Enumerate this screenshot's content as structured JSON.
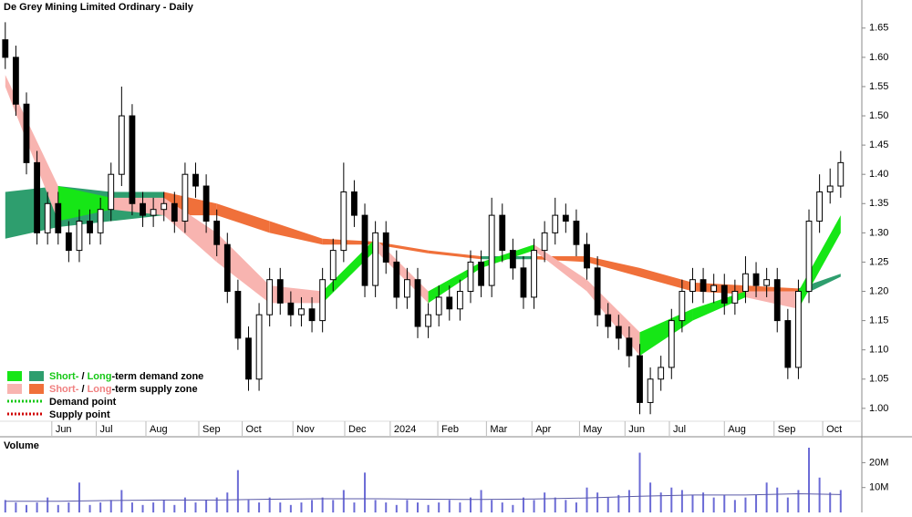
{
  "chart_data": {
    "type": "candlestick",
    "title": "De Grey Mining Limited Ordinary - Daily",
    "volume_title": "Volume",
    "xlim": [
      -0.5,
      81
    ],
    "xticks": [
      {
        "value": 4.4,
        "label": "Jun"
      },
      {
        "value": 8.6,
        "label": "Jul"
      },
      {
        "value": 13.3,
        "label": "Aug"
      },
      {
        "value": 18.3,
        "label": "Sep"
      },
      {
        "value": 22.4,
        "label": "Oct"
      },
      {
        "value": 27.2,
        "label": "Nov"
      },
      {
        "value": 32.1,
        "label": "Dec"
      },
      {
        "value": 36.4,
        "label": "2024"
      },
      {
        "value": 40.9,
        "label": "Feb"
      },
      {
        "value": 45.5,
        "label": "Mar"
      },
      {
        "value": 49.8,
        "label": "Apr"
      },
      {
        "value": 54.3,
        "label": "May"
      },
      {
        "value": 58.6,
        "label": "Jun"
      },
      {
        "value": 62.8,
        "label": "Jul"
      },
      {
        "value": 68.0,
        "label": "Aug"
      },
      {
        "value": 72.7,
        "label": "Sep"
      },
      {
        "value": 77.3,
        "label": "Oct"
      }
    ],
    "ylim": [
      0.953,
      1.698
    ],
    "yticks": [
      {
        "value": 1.0,
        "label": "1.00"
      },
      {
        "value": 1.05,
        "label": "1.05"
      },
      {
        "value": 1.1,
        "label": "1.10"
      },
      {
        "value": 1.15,
        "label": "1.15"
      },
      {
        "value": 1.2,
        "label": "1.20"
      },
      {
        "value": 1.25,
        "label": "1.25"
      },
      {
        "value": 1.3,
        "label": "1.30"
      },
      {
        "value": 1.35,
        "label": "1.35"
      },
      {
        "value": 1.4,
        "label": "1.40"
      },
      {
        "value": 1.45,
        "label": "1.45"
      },
      {
        "value": 1.5,
        "label": "1.50"
      },
      {
        "value": 1.55,
        "label": "1.55"
      },
      {
        "value": 1.6,
        "label": "1.60"
      },
      {
        "value": 1.65,
        "label": "1.65"
      }
    ],
    "close": [
      1.6,
      1.52,
      1.42,
      1.3,
      1.35,
      1.3,
      1.27,
      1.32,
      1.3,
      1.34,
      1.4,
      1.5,
      1.35,
      1.33,
      1.34,
      1.35,
      1.32,
      1.4,
      1.38,
      1.32,
      1.28,
      1.2,
      1.12,
      1.05,
      1.16,
      1.22,
      1.18,
      1.16,
      1.17,
      1.15,
      1.22,
      1.27,
      1.37,
      1.33,
      1.21,
      1.3,
      1.25,
      1.19,
      1.22,
      1.14,
      1.16,
      1.19,
      1.17,
      1.2,
      1.25,
      1.21,
      1.33,
      1.27,
      1.24,
      1.19,
      1.27,
      1.3,
      1.33,
      1.32,
      1.28,
      1.24,
      1.16,
      1.14,
      1.12,
      1.09,
      1.01,
      1.05,
      1.07,
      1.15,
      1.2,
      1.22,
      1.2,
      1.21,
      1.18,
      1.2,
      1.23,
      1.21,
      1.22,
      1.15,
      1.07,
      1.2,
      1.32,
      1.37,
      1.38,
      1.42
    ],
    "open": [
      1.63,
      1.6,
      1.52,
      1.42,
      1.3,
      1.35,
      1.3,
      1.27,
      1.32,
      1.3,
      1.34,
      1.4,
      1.5,
      1.35,
      1.33,
      1.34,
      1.35,
      1.32,
      1.4,
      1.38,
      1.32,
      1.28,
      1.2,
      1.12,
      1.05,
      1.16,
      1.22,
      1.18,
      1.16,
      1.17,
      1.15,
      1.22,
      1.27,
      1.37,
      1.33,
      1.21,
      1.3,
      1.25,
      1.19,
      1.22,
      1.14,
      1.16,
      1.19,
      1.17,
      1.2,
      1.25,
      1.21,
      1.33,
      1.27,
      1.24,
      1.19,
      1.27,
      1.3,
      1.33,
      1.32,
      1.28,
      1.24,
      1.16,
      1.14,
      1.12,
      1.09,
      1.01,
      1.05,
      1.07,
      1.15,
      1.2,
      1.22,
      1.2,
      1.21,
      1.18,
      1.2,
      1.23,
      1.21,
      1.22,
      1.15,
      1.07,
      1.2,
      1.32,
      1.37,
      1.38
    ],
    "high": [
      1.66,
      1.62,
      1.54,
      1.44,
      1.37,
      1.37,
      1.32,
      1.34,
      1.34,
      1.36,
      1.42,
      1.55,
      1.52,
      1.37,
      1.36,
      1.37,
      1.37,
      1.42,
      1.42,
      1.4,
      1.34,
      1.3,
      1.22,
      1.14,
      1.18,
      1.24,
      1.24,
      1.2,
      1.19,
      1.19,
      1.24,
      1.29,
      1.42,
      1.39,
      1.35,
      1.32,
      1.32,
      1.27,
      1.24,
      1.24,
      1.18,
      1.21,
      1.21,
      1.22,
      1.27,
      1.27,
      1.36,
      1.35,
      1.29,
      1.26,
      1.29,
      1.32,
      1.36,
      1.35,
      1.34,
      1.3,
      1.26,
      1.18,
      1.16,
      1.14,
      1.11,
      1.07,
      1.09,
      1.17,
      1.22,
      1.24,
      1.24,
      1.23,
      1.23,
      1.22,
      1.26,
      1.25,
      1.24,
      1.24,
      1.17,
      1.22,
      1.34,
      1.4,
      1.41,
      1.44
    ],
    "low": [
      1.58,
      1.5,
      1.4,
      1.28,
      1.28,
      1.28,
      1.25,
      1.25,
      1.28,
      1.28,
      1.32,
      1.38,
      1.33,
      1.31,
      1.31,
      1.32,
      1.3,
      1.3,
      1.36,
      1.3,
      1.26,
      1.18,
      1.1,
      1.03,
      1.03,
      1.14,
      1.16,
      1.14,
      1.14,
      1.13,
      1.13,
      1.2,
      1.25,
      1.31,
      1.19,
      1.19,
      1.23,
      1.17,
      1.17,
      1.12,
      1.12,
      1.14,
      1.15,
      1.15,
      1.18,
      1.19,
      1.19,
      1.25,
      1.22,
      1.17,
      1.17,
      1.25,
      1.28,
      1.3,
      1.26,
      1.22,
      1.14,
      1.12,
      1.1,
      1.07,
      0.99,
      0.99,
      1.03,
      1.05,
      1.13,
      1.18,
      1.18,
      1.18,
      1.16,
      1.16,
      1.18,
      1.19,
      1.19,
      1.13,
      1.05,
      1.05,
      1.18,
      1.3,
      1.35,
      1.36
    ],
    "band_x": [
      0,
      5,
      10,
      15,
      20,
      25,
      30,
      35,
      40,
      45,
      50,
      55,
      60,
      65,
      70,
      75,
      79
    ],
    "long_upper": [
      1.37,
      1.38,
      1.37,
      1.37,
      1.35,
      1.32,
      1.29,
      1.285,
      1.27,
      1.26,
      1.26,
      1.26,
      1.24,
      1.215,
      1.21,
      1.205,
      1.23
    ],
    "long_lower": [
      1.29,
      1.31,
      1.32,
      1.33,
      1.33,
      1.3,
      1.28,
      1.28,
      1.265,
      1.255,
      1.255,
      1.25,
      1.225,
      1.2,
      1.195,
      1.19,
      1.225
    ],
    "short_upper": [
      1.57,
      1.38,
      1.36,
      1.36,
      1.3,
      1.21,
      1.2,
      1.29,
      1.2,
      1.25,
      1.28,
      1.22,
      1.13,
      1.17,
      1.2,
      1.2,
      1.33
    ],
    "short_lower": [
      1.55,
      1.32,
      1.34,
      1.33,
      1.25,
      1.18,
      1.18,
      1.27,
      1.18,
      1.24,
      1.27,
      1.2,
      1.09,
      1.15,
      1.19,
      1.17,
      1.3
    ],
    "colors": {
      "demand_short": "#16e616",
      "demand_long": "#2e9e6e",
      "supply_short": "#f8b4b0",
      "supply_long": "#f0703a",
      "demand_point": "#16c816",
      "supply_point": "#d00000",
      "volume": "#6b6bd6"
    },
    "legend": [
      {
        "short": "Short-",
        "sep": " / ",
        "long": "Long",
        "rest": "-term demand zone"
      },
      {
        "short": "Short-",
        "sep": " / ",
        "long": "Long",
        "rest": "-term supply zone"
      },
      {
        "rest": "Demand point"
      },
      {
        "rest": "Supply point"
      }
    ],
    "volume": [
      5000000,
      4000000,
      3000000,
      4000000,
      6000000,
      3000000,
      4000000,
      12000000,
      3000000,
      4000000,
      5000000,
      9000000,
      4000000,
      3000000,
      4000000,
      5000000,
      3000000,
      6000000,
      4000000,
      5000000,
      6000000,
      8000000,
      17000000,
      5000000,
      4000000,
      6000000,
      4000000,
      3000000,
      4000000,
      5000000,
      6000000,
      5000000,
      9000000,
      4000000,
      16000000,
      5000000,
      4000000,
      3000000,
      5000000,
      4000000,
      3000000,
      4000000,
      5000000,
      4000000,
      6000000,
      9000000,
      5000000,
      4000000,
      3000000,
      6000000,
      5000000,
      8000000,
      6000000,
      5000000,
      4000000,
      10000000,
      8000000,
      6000000,
      7000000,
      9000000,
      24000000,
      12000000,
      8000000,
      10000000,
      9000000,
      7000000,
      8000000,
      6000000,
      7000000,
      5000000,
      6000000,
      7000000,
      12000000,
      10000000,
      6000000,
      9000000,
      26000000,
      14000000,
      8000000,
      9000000
    ],
    "volume_ma": [
      4500000,
      4500000,
      4800000,
      5000000,
      5000000,
      5300000,
      5500000,
      5500000,
      5300000,
      5200000,
      5400000,
      5800000,
      6500000,
      7000000,
      7000000,
      7500000,
      7200000
    ],
    "volume_ylim": [
      0,
      29300000
    ],
    "volume_yticks": [
      {
        "value": 10000000,
        "label": "10M"
      },
      {
        "value": 20000000,
        "label": "20M"
      }
    ]
  }
}
